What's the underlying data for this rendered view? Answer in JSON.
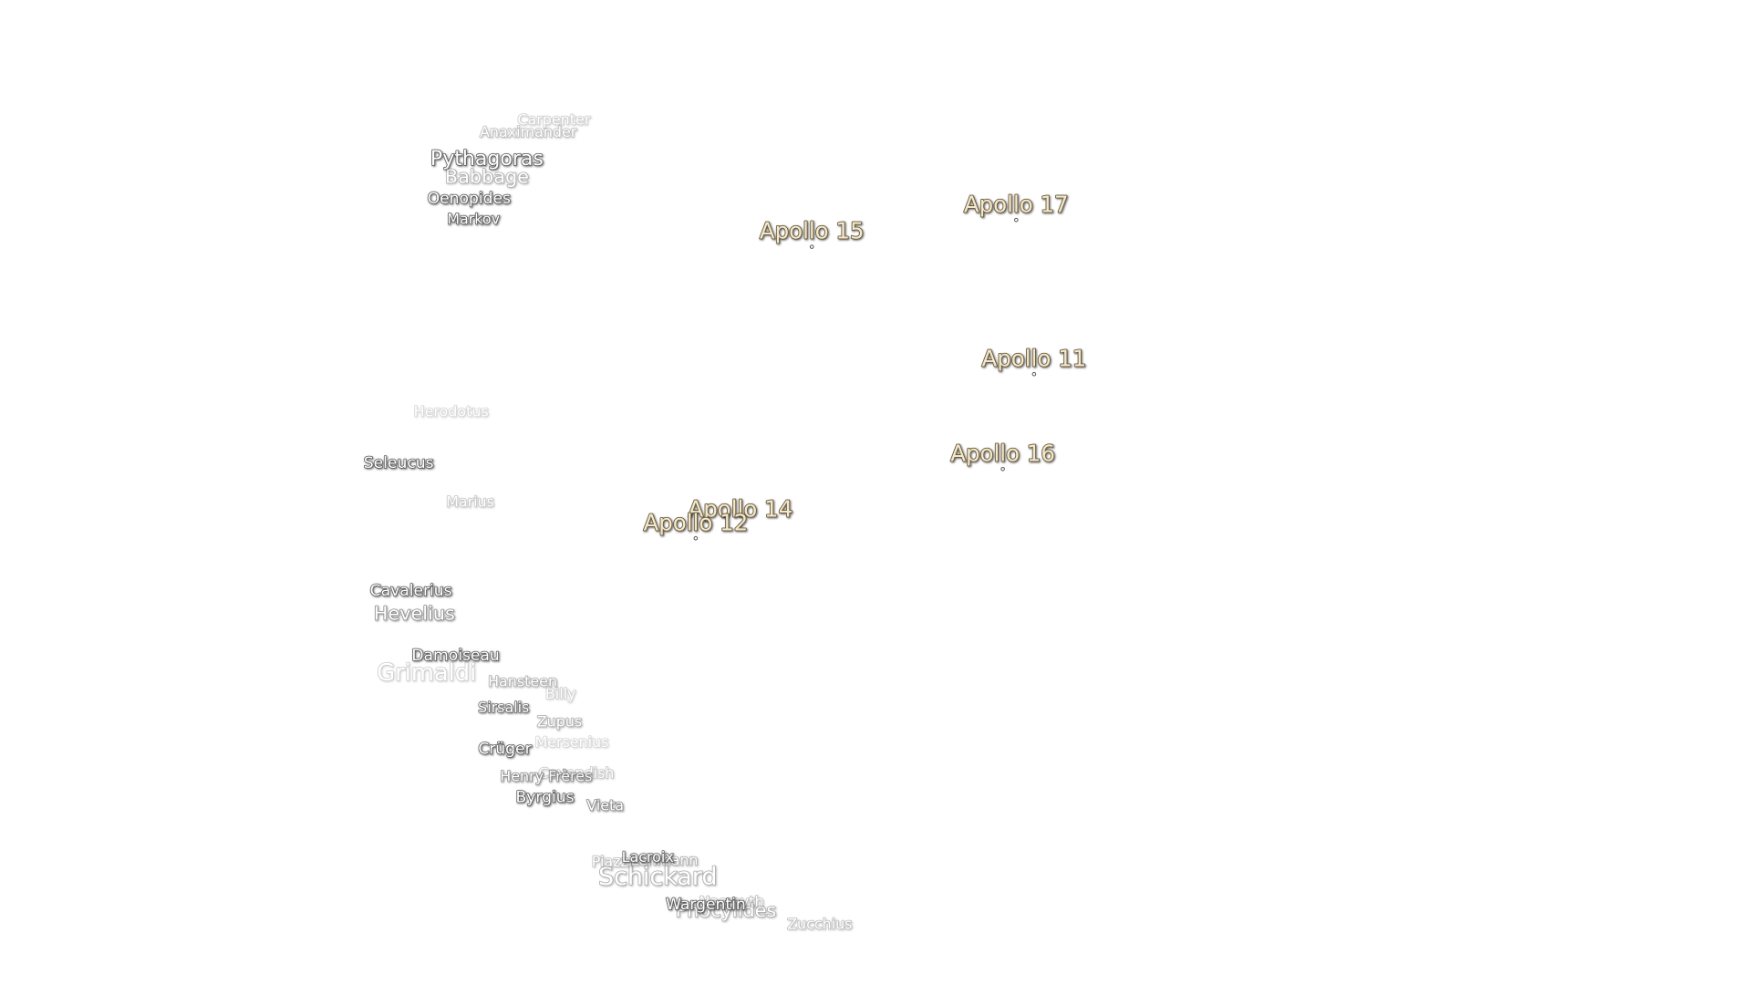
{
  "apollo_sites": [
    "Apollo 17",
    "Apollo 15",
    "Apollo 11",
    "Apollo 16",
    "Apollo 14",
    "Apollo 12"
  ],
  "craters": [
    "Carpenter",
    "Anaximander",
    "Pythagoras",
    "Babbage",
    "Oenopides",
    "Markov",
    "Herodotus",
    "Seleucus",
    "Marius",
    "Cavalerius",
    "Hevelius",
    "Damoiseau",
    "Grimaldi",
    "Hansteen",
    "Billy",
    "Sirsalis",
    "Zupus",
    "Mersenius",
    "Crüger",
    "Cavendish",
    "Henry Frères",
    "Byrgius",
    "Vieta",
    "Piazzi",
    "Lehmann",
    "Lacroix",
    "Schickard",
    "Nasmyth",
    "Phocylides",
    "Wargentin",
    "Zucchius"
  ]
}
